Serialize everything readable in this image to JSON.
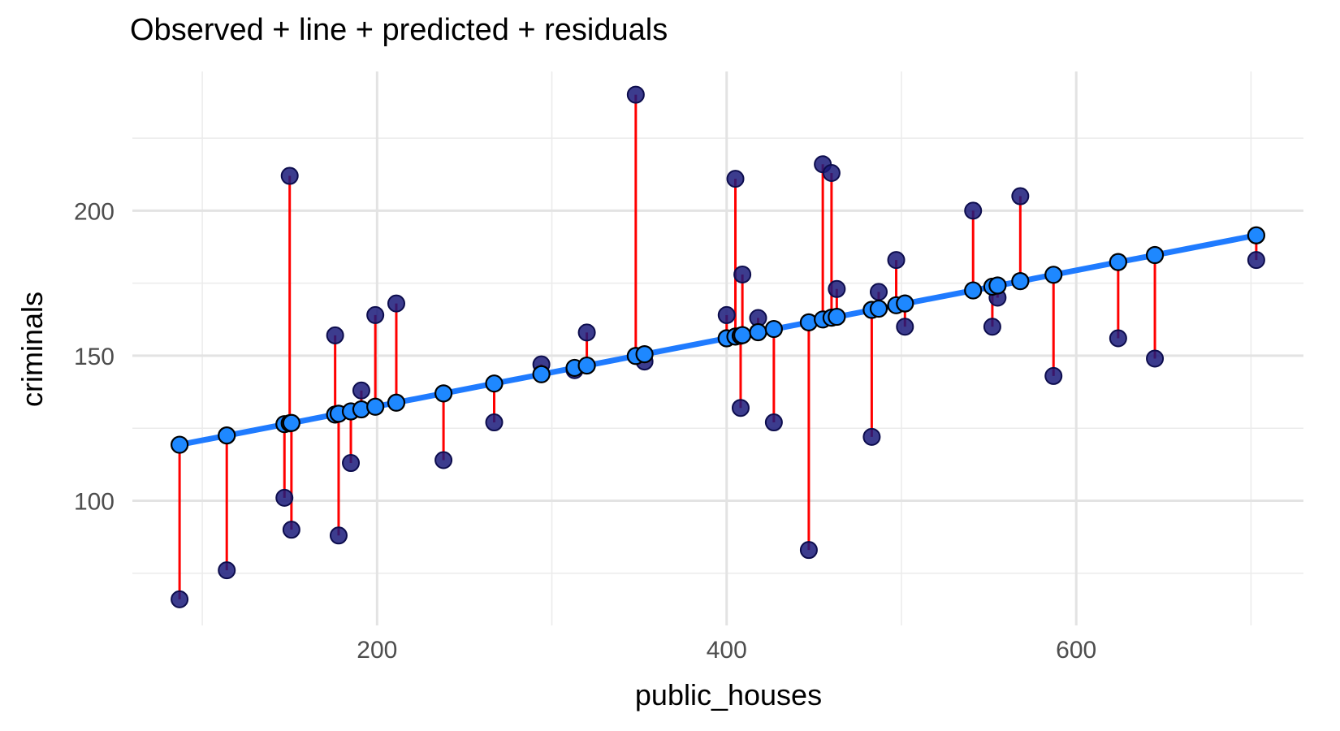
{
  "chart_data": {
    "type": "scatter",
    "title": "Observed + line + predicted + residuals",
    "xlabel": "public_houses",
    "ylabel": "criminals",
    "xlim": [
      60,
      730
    ],
    "ylim": [
      57,
      248
    ],
    "x_ticks": [
      200,
      400,
      600
    ],
    "y_ticks": [
      100,
      150,
      200
    ],
    "x_minor_ticks": [
      100,
      300,
      500,
      700
    ],
    "y_minor_ticks": [
      75,
      125,
      175,
      225
    ],
    "grid": true,
    "line": {
      "name": "fitted line",
      "x": [
        87,
        703
      ],
      "y": [
        119.3,
        191.5
      ],
      "color": "#1f7bff"
    },
    "residual_color": "#ff0000",
    "observed_color": "#1a1a7a",
    "predicted_color": "#1e88ff",
    "observed": {
      "x": [
        87,
        114,
        147,
        150,
        151,
        176,
        178,
        185,
        191,
        199,
        211,
        238,
        267,
        294,
        313,
        320,
        348,
        353,
        400,
        405,
        408,
        409,
        418,
        427,
        447,
        455,
        460,
        463,
        483,
        487,
        497,
        502,
        541,
        552,
        555,
        568,
        587,
        624,
        645,
        703
      ],
      "y": [
        66,
        76,
        101,
        212,
        90,
        157,
        88,
        113,
        138,
        164,
        168,
        114,
        127,
        147,
        145,
        158,
        240,
        148,
        164,
        211,
        132,
        178,
        163,
        127,
        83,
        216,
        213,
        173,
        122,
        172,
        183,
        160,
        200,
        160,
        170,
        205,
        143,
        156,
        149,
        183
      ]
    },
    "predicted": {
      "x": [
        87,
        114,
        147,
        150,
        151,
        176,
        178,
        185,
        191,
        199,
        211,
        238,
        267,
        294,
        313,
        320,
        348,
        353,
        400,
        405,
        408,
        409,
        418,
        427,
        447,
        455,
        460,
        463,
        483,
        487,
        497,
        502,
        541,
        552,
        555,
        568,
        587,
        624,
        645,
        703
      ],
      "y": [
        119.3,
        122.5,
        126.4,
        126.7,
        126.8,
        129.7,
        130.0,
        130.8,
        131.5,
        132.4,
        133.8,
        137.0,
        140.4,
        143.6,
        145.8,
        146.6,
        149.9,
        150.5,
        156.0,
        156.6,
        156.9,
        157.1,
        158.1,
        159.2,
        161.5,
        162.5,
        163.1,
        163.4,
        165.8,
        166.2,
        167.4,
        168.0,
        172.5,
        173.8,
        174.2,
        175.7,
        177.9,
        182.3,
        184.7,
        191.5
      ]
    }
  }
}
